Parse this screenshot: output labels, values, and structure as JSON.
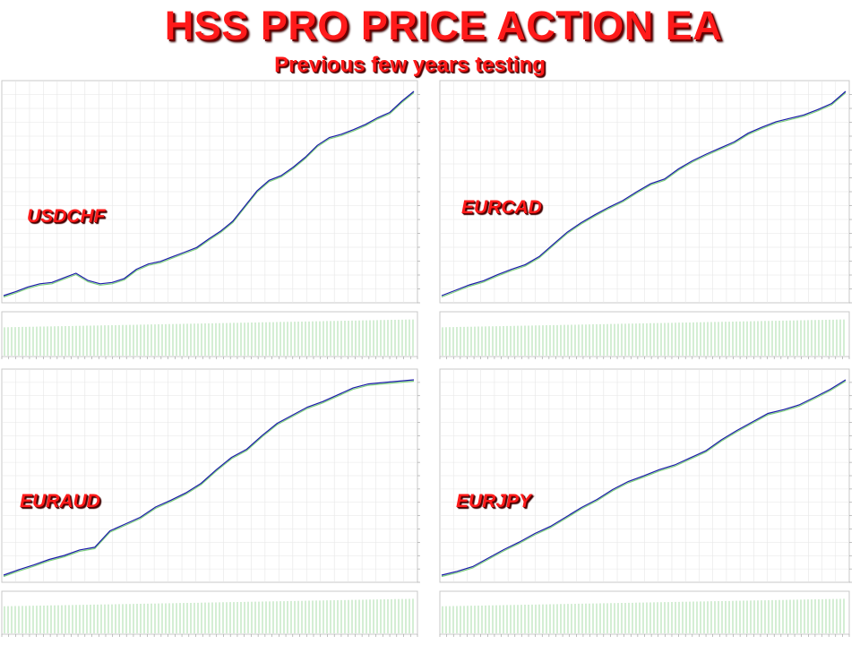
{
  "header": {
    "title": "HSS PRO PRICE ACTION EA",
    "subtitle": "Previous few years testing"
  },
  "colors": {
    "equity_line": "#1a1aa8",
    "balance_line": "#7ed07e",
    "volume_bars": "#a8dca8",
    "grid": "#e6e6e6",
    "label": "#ff1a1a"
  },
  "chart_data": [
    {
      "type": "line",
      "pair": "USDCHF",
      "series": [
        {
          "values": [
            10200,
            10260,
            10330,
            10380,
            10400,
            10470,
            10540,
            10430,
            10380,
            10400,
            10460,
            10600,
            10680,
            10720,
            10790,
            10860,
            10930,
            11060,
            11180,
            11330,
            11560,
            11790,
            11950,
            12020,
            12150,
            12300,
            12480,
            12600,
            12650,
            12720,
            12800,
            12900,
            12980,
            13150,
            13300
          ]
        }
      ]
    },
    {
      "type": "line",
      "pair": "EURCAD",
      "series": [
        {
          "values": [
            10020,
            10100,
            10180,
            10240,
            10330,
            10410,
            10480,
            10600,
            10780,
            10960,
            11100,
            11220,
            11330,
            11430,
            11560,
            11680,
            11750,
            11900,
            12020,
            12120,
            12210,
            12300,
            12430,
            12520,
            12600,
            12650,
            12700,
            12780,
            12870,
            13050
          ]
        }
      ]
    },
    {
      "type": "line",
      "pair": "EURAUD",
      "series": [
        {
          "values": [
            10150,
            10230,
            10300,
            10380,
            10440,
            10520,
            10560,
            10800,
            10900,
            11000,
            11150,
            11250,
            11360,
            11500,
            11700,
            11880,
            12000,
            12200,
            12380,
            12500,
            12620,
            12700,
            12800,
            12900,
            12960,
            12980,
            13000,
            13020
          ]
        }
      ]
    },
    {
      "type": "line",
      "pair": "EURJPY",
      "series": [
        {
          "values": [
            10020,
            10100,
            10200,
            10380,
            10560,
            10720,
            10900,
            11050,
            11250,
            11450,
            11620,
            11830,
            12000,
            12120,
            12250,
            12350,
            12500,
            12650,
            12880,
            13080,
            13260,
            13440,
            13520,
            13620,
            13780,
            13950,
            14150
          ]
        }
      ]
    }
  ]
}
